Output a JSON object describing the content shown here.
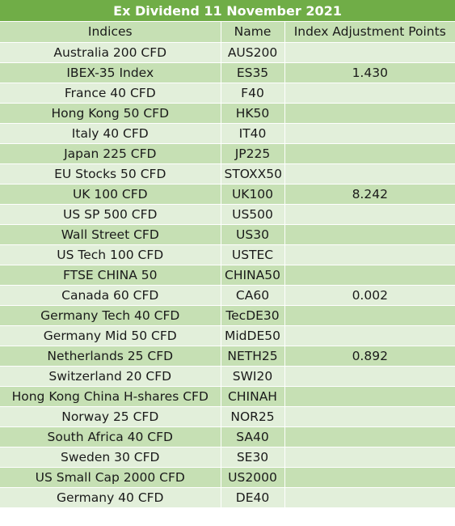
{
  "title": "Ex Dividend 11 November 2021",
  "columns": [
    "Indices",
    "Name",
    "Index Adjustment Points"
  ],
  "rows": [
    {
      "index": "Australia 200 CFD",
      "name": "AUS200",
      "points": ""
    },
    {
      "index": "IBEX-35 Index",
      "name": "ES35",
      "points": "1.430"
    },
    {
      "index": "France 40 CFD",
      "name": "F40",
      "points": ""
    },
    {
      "index": "Hong Kong 50 CFD",
      "name": "HK50",
      "points": ""
    },
    {
      "index": "Italy 40 CFD",
      "name": "IT40",
      "points": ""
    },
    {
      "index": "Japan 225 CFD",
      "name": "JP225",
      "points": ""
    },
    {
      "index": "EU Stocks 50 CFD",
      "name": "STOXX50",
      "points": ""
    },
    {
      "index": "UK 100 CFD",
      "name": "UK100",
      "points": "8.242"
    },
    {
      "index": "US SP 500 CFD",
      "name": "US500",
      "points": ""
    },
    {
      "index": "Wall Street CFD",
      "name": "US30",
      "points": ""
    },
    {
      "index": "US Tech 100 CFD",
      "name": "USTEC",
      "points": ""
    },
    {
      "index": "FTSE CHINA 50",
      "name": "CHINA50",
      "points": ""
    },
    {
      "index": "Canada 60 CFD",
      "name": "CA60",
      "points": "0.002"
    },
    {
      "index": "Germany Tech 40 CFD",
      "name": "TecDE30",
      "points": ""
    },
    {
      "index": "Germany Mid 50 CFD",
      "name": "MidDE50",
      "points": ""
    },
    {
      "index": "Netherlands 25 CFD",
      "name": "NETH25",
      "points": "0.892"
    },
    {
      "index": "Switzerland 20 CFD",
      "name": "SWI20",
      "points": ""
    },
    {
      "index": "Hong Kong China H-shares CFD",
      "name": "CHINAH",
      "points": ""
    },
    {
      "index": "Norway 25 CFD",
      "name": "NOR25",
      "points": ""
    },
    {
      "index": "South Africa 40 CFD",
      "name": "SA40",
      "points": ""
    },
    {
      "index": "Sweden 30 CFD",
      "name": "SE30",
      "points": ""
    },
    {
      "index": "US Small Cap 2000 CFD",
      "name": "US2000",
      "points": ""
    },
    {
      "index": "Germany 40 CFD",
      "name": "DE40",
      "points": ""
    }
  ]
}
